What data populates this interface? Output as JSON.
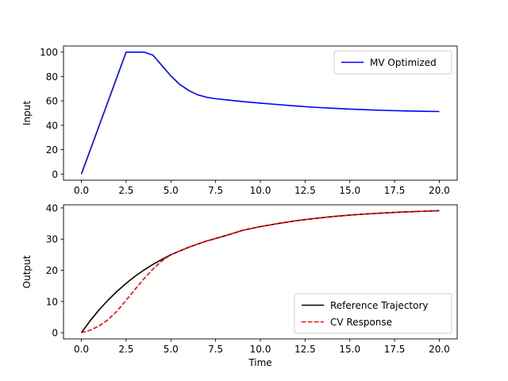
{
  "chart_data": [
    {
      "type": "line",
      "xlabel": "",
      "ylabel": "Input",
      "xlim": [
        -1.0,
        21.0
      ],
      "ylim": [
        -5.0,
        105.0
      ],
      "xticks": [
        "0.0",
        "2.5",
        "5.0",
        "7.5",
        "10.0",
        "12.5",
        "15.0",
        "17.5",
        "20.0"
      ],
      "yticks": [
        "0",
        "20",
        "40",
        "60",
        "80",
        "100"
      ],
      "legend_position": "top-right",
      "series": [
        {
          "name": "MV Optimized",
          "color": "#0000ff",
          "style": "solid",
          "x": [
            0.0,
            2.5,
            3.0,
            3.5,
            4.0,
            4.5,
            5.0,
            5.5,
            6.0,
            6.5,
            7.0,
            7.5,
            8.0,
            9.0,
            10.0,
            11.0,
            12.0,
            13.0,
            14.0,
            15.0,
            16.0,
            17.0,
            18.0,
            19.0,
            20.0
          ],
          "y": [
            0.0,
            100.0,
            100.0,
            100.0,
            97.5,
            89.0,
            80.5,
            73.5,
            68.5,
            65.0,
            63.0,
            61.8,
            61.0,
            59.5,
            58.2,
            57.0,
            55.8,
            54.8,
            54.0,
            53.3,
            52.7,
            52.2,
            51.8,
            51.5,
            51.3
          ]
        }
      ]
    },
    {
      "type": "line",
      "xlabel": "Time",
      "ylabel": "Output",
      "xlim": [
        -1.0,
        21.0
      ],
      "ylim": [
        -2.0,
        41.0
      ],
      "xticks": [
        "0.0",
        "2.5",
        "5.0",
        "7.5",
        "10.0",
        "12.5",
        "15.0",
        "17.5",
        "20.0"
      ],
      "yticks": [
        "0",
        "10",
        "20",
        "30",
        "40"
      ],
      "legend_position": "bottom-right",
      "series": [
        {
          "name": "Reference Trajectory",
          "color": "#000000",
          "style": "solid",
          "x": [
            0.0,
            0.5,
            1.0,
            1.5,
            2.0,
            2.5,
            3.0,
            3.5,
            4.0,
            4.5,
            5.0,
            6.0,
            7.0,
            8.0,
            9.0,
            10.0,
            11.0,
            12.0,
            13.0,
            14.0,
            15.0,
            16.0,
            17.0,
            18.0,
            19.0,
            20.0
          ],
          "y": [
            0.0,
            3.9,
            7.4,
            10.5,
            13.3,
            15.8,
            18.1,
            20.1,
            21.9,
            23.5,
            25.0,
            27.4,
            29.4,
            31.0,
            32.8,
            34.0,
            35.0,
            35.9,
            36.6,
            37.2,
            37.7,
            38.1,
            38.4,
            38.7,
            38.9,
            39.1
          ]
        },
        {
          "name": "CV Response",
          "color": "#ff0000",
          "style": "dashed",
          "x": [
            0.0,
            0.5,
            1.0,
            1.5,
            2.0,
            2.5,
            3.0,
            3.5,
            4.0,
            4.5,
            5.0,
            6.0,
            7.0,
            8.0,
            9.0,
            10.0,
            11.0,
            12.0,
            13.0,
            14.0,
            15.0,
            16.0,
            17.0,
            18.0,
            19.0,
            20.0
          ],
          "y": [
            0.0,
            0.8,
            2.2,
            4.2,
            7.0,
            10.4,
            13.9,
            17.3,
            20.4,
            23.0,
            25.0,
            27.4,
            29.4,
            31.0,
            32.8,
            34.0,
            35.0,
            35.9,
            36.6,
            37.2,
            37.7,
            38.1,
            38.4,
            38.7,
            38.9,
            39.1
          ]
        }
      ]
    }
  ]
}
